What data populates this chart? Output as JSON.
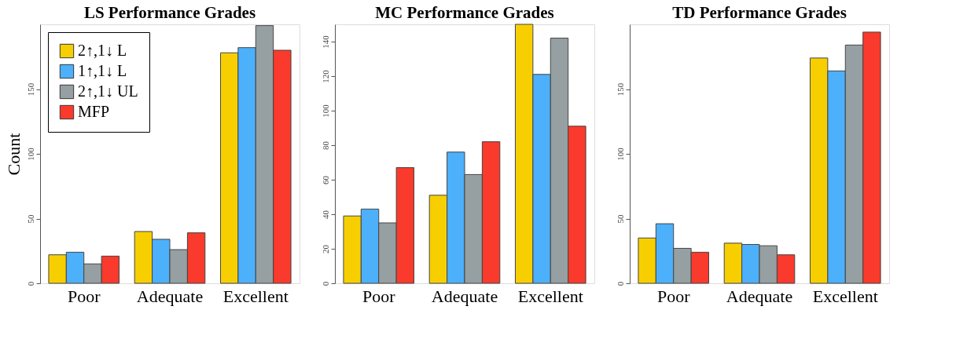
{
  "chart_data": [
    {
      "type": "bar",
      "title": "LS Performance Grades",
      "ylabel": "Count",
      "categories": [
        "Poor",
        "Adequate",
        "Excellent"
      ],
      "ylim": [
        0,
        200
      ],
      "yticks": [
        0,
        50,
        100,
        150
      ],
      "legend": "top left",
      "series": [
        {
          "name": "2↑,1↓ L",
          "color": "#f7cf00",
          "values": [
            22,
            40,
            178
          ]
        },
        {
          "name": "1↑,1↓ L",
          "color": "#4db0fb",
          "values": [
            24,
            34,
            182
          ]
        },
        {
          "name": "2↑,1↓ UL",
          "color": "#96a0a2",
          "values": [
            15,
            26,
            199
          ]
        },
        {
          "name": "MFP",
          "color": "#f93a2c",
          "values": [
            21,
            39,
            180
          ]
        }
      ]
    },
    {
      "type": "bar",
      "title": "MC Performance Grades",
      "categories": [
        "Poor",
        "Adequate",
        "Excellent"
      ],
      "ylim": [
        0,
        150
      ],
      "yticks": [
        0,
        20,
        40,
        60,
        80,
        100,
        120,
        140
      ],
      "series": [
        {
          "color": "#f7cf00",
          "values": [
            39,
            51,
            150
          ]
        },
        {
          "color": "#4db0fb",
          "values": [
            43,
            76,
            121
          ]
        },
        {
          "color": "#96a0a2",
          "values": [
            35,
            63,
            142
          ]
        },
        {
          "color": "#f93a2c",
          "values": [
            67,
            82,
            91
          ]
        }
      ]
    },
    {
      "type": "bar",
      "title": "TD Performance Grades",
      "categories": [
        "Poor",
        "Adequate",
        "Excellent"
      ],
      "ylim": [
        0,
        200
      ],
      "yticks": [
        0,
        50,
        100,
        150
      ],
      "series": [
        {
          "color": "#f7cf00",
          "values": [
            35,
            31,
            174
          ]
        },
        {
          "color": "#4db0fb",
          "values": [
            46,
            30,
            164
          ]
        },
        {
          "color": "#96a0a2",
          "values": [
            27,
            29,
            184
          ]
        },
        {
          "color": "#f93a2c",
          "values": [
            24,
            22,
            194
          ]
        }
      ]
    }
  ]
}
